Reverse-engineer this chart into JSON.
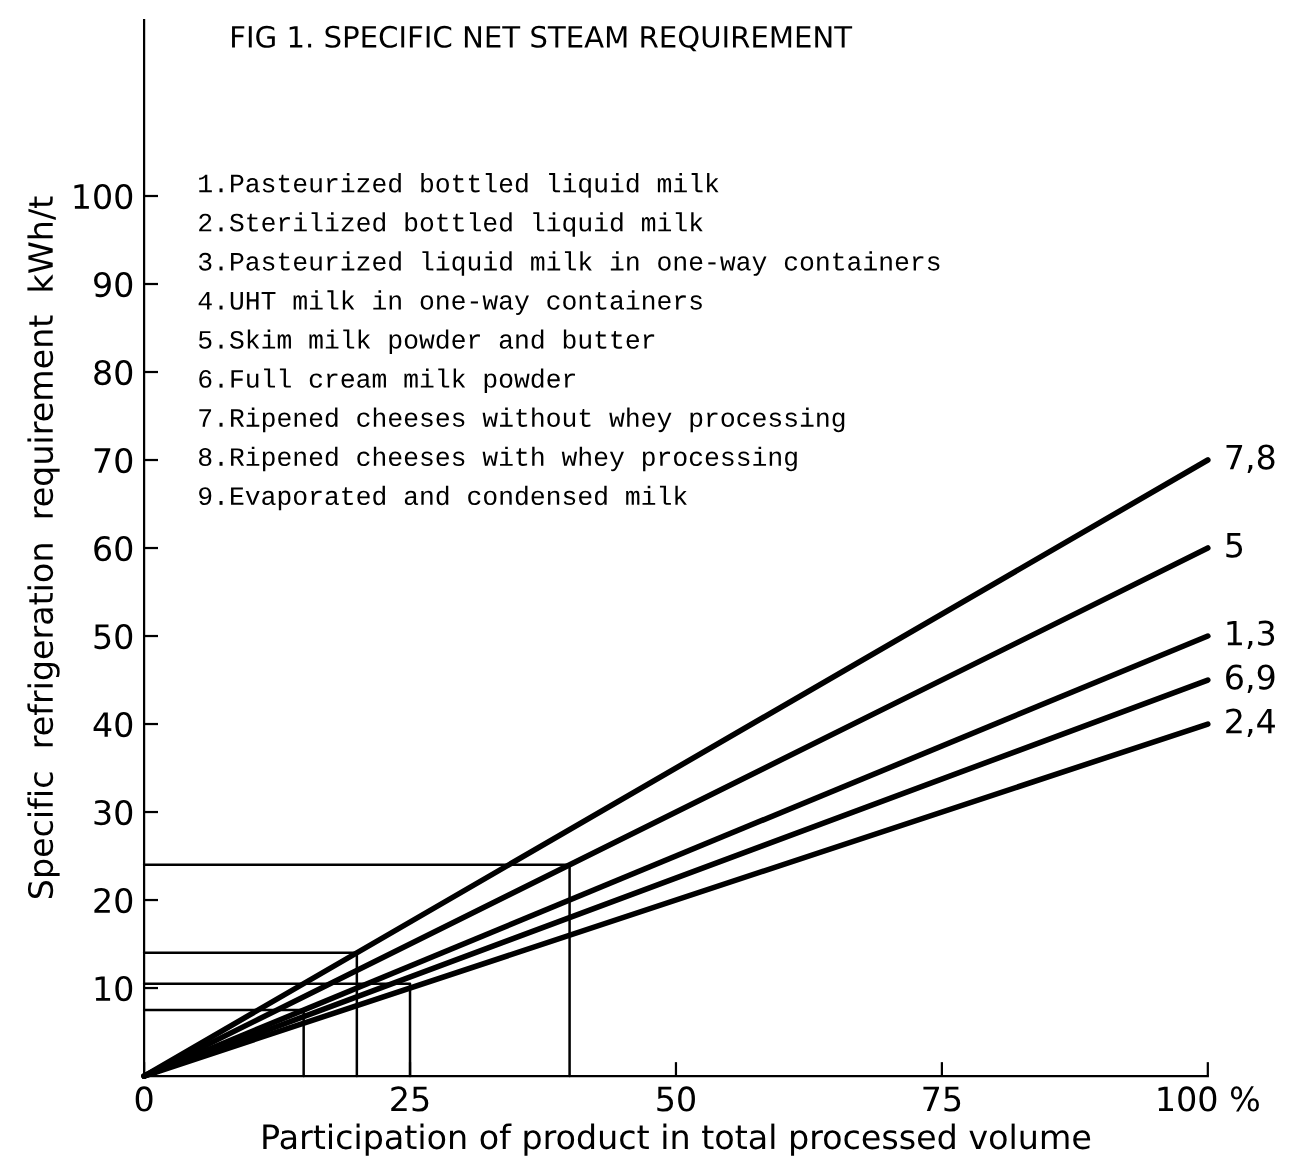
{
  "chart_data": {
    "type": "line",
    "title": "FIG 1. SPECIFIC NET STEAM REQUIREMENT",
    "xlabel": "Participation of product in total processed volume",
    "ylabel": "Specific  refrigeration  requirement  kWh/t",
    "annotations": [
      "1.Pasteurized bottled liquid milk",
      "2.Sterilized bottled liquid milk",
      "3.Pasteurized liquid milk in one-way containers",
      "4.UHT milk in one-way containers",
      "5.Skim milk powder and butter",
      "6.Full cream milk powder",
      "7.Ripened cheeses without whey processing",
      "8.Ripened cheeses with whey processing",
      "9.Evaporated and condensed milk"
    ],
    "series": [
      {
        "name": "7,8",
        "color": "#000000",
        "x": [
          0,
          100
        ],
        "values": [
          0,
          70
        ]
      },
      {
        "name": "5",
        "color": "#000000",
        "x": [
          0,
          100
        ],
        "values": [
          0,
          60
        ]
      },
      {
        "name": "1,3",
        "color": "#000000",
        "x": [
          0,
          100
        ],
        "values": [
          0,
          50
        ]
      },
      {
        "name": "6,9",
        "color": "#000000",
        "x": [
          0,
          100
        ],
        "values": [
          0,
          45
        ]
      },
      {
        "name": "2,4",
        "color": "#000000",
        "x": [
          0,
          100
        ],
        "values": [
          0,
          40
        ]
      },
      {
        "color": "#000000",
        "x": [
          0,
          15,
          15
        ],
        "values": [
          7.5,
          7.5,
          0
        ]
      },
      {
        "color": "#000000",
        "x": [
          0,
          20,
          20
        ],
        "values": [
          14,
          14,
          0
        ]
      },
      {
        "color": "#000000",
        "x": [
          0,
          25,
          25
        ],
        "values": [
          10.5,
          10.5,
          0
        ]
      },
      {
        "color": "#000000",
        "x": [
          0,
          40,
          40
        ],
        "values": [
          24,
          24,
          0
        ]
      }
    ],
    "xlim": [
      0,
      100
    ],
    "ylim": [
      0,
      120
    ],
    "xticks": [
      0,
      25,
      50,
      75,
      {
        "value": 100,
        "label": "100 %"
      }
    ],
    "yticks": [
      10,
      20,
      30,
      40,
      50,
      60,
      70,
      80,
      90,
      100
    ],
    "grid": false,
    "legend": false,
    "marker": "none",
    "line_style": "solid"
  }
}
